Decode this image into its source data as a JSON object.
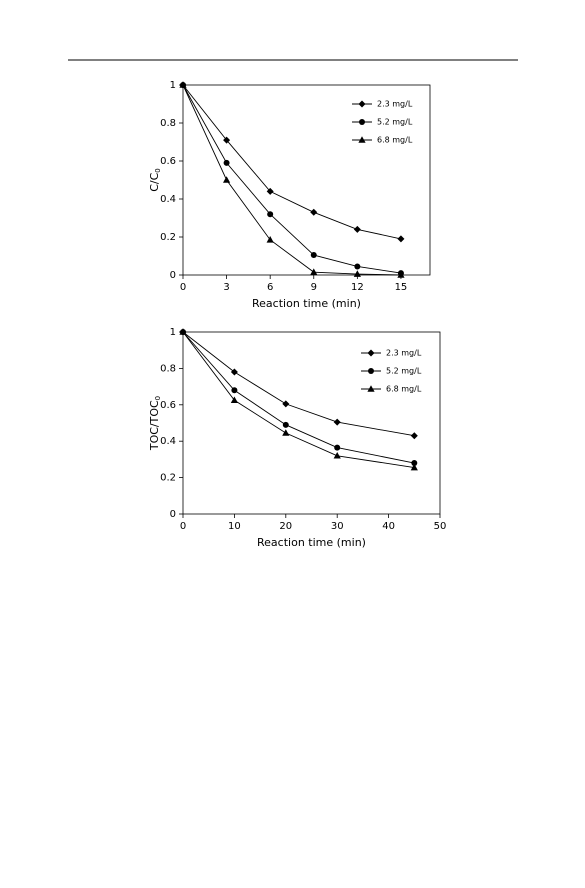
{
  "chart_data": [
    {
      "type": "line",
      "xlabel": "Reaction time (min)",
      "ylabel": {
        "main": "C/C",
        "sub": "0"
      },
      "xlim": [
        0,
        17
      ],
      "xticks": [
        0,
        3,
        6,
        9,
        12,
        15
      ],
      "ylim": [
        0,
        1
      ],
      "yticks": [
        0,
        {
          "value": 0.2,
          "label": "0.2"
        },
        {
          "value": 0.4,
          "label": "0.4"
        },
        {
          "value": 0.6,
          "label": "0.6"
        },
        {
          "value": 0.8,
          "label": "0.8"
        },
        1
      ],
      "x": [
        0,
        3,
        6,
        9,
        12,
        15
      ],
      "series": [
        {
          "name": "2.3 mg/L",
          "color": "#000000",
          "marker": "diamond",
          "values": [
            1,
            0.71,
            0.44,
            0.33,
            0.24,
            0.19
          ]
        },
        {
          "name": "5.2 mg/L",
          "color": "#000000",
          "marker": "circle",
          "values": [
            1,
            0.59,
            0.32,
            0.105,
            0.045,
            0.01
          ]
        },
        {
          "name": "6.8 mg/L",
          "color": "#000000",
          "marker": "triangle",
          "values": [
            1,
            0.5,
            0.185,
            0.015,
            0.005,
            0
          ]
        }
      ]
    },
    {
      "type": "line",
      "xlabel": "Reaction time (min)",
      "ylabel": {
        "main": "TOC/TOC",
        "sub": "0"
      },
      "xlim": [
        0,
        50
      ],
      "xticks": [
        0,
        10,
        20,
        30,
        40,
        50
      ],
      "ylim": [
        0,
        1
      ],
      "yticks": [
        0,
        {
          "value": 0.2,
          "label": "0.2"
        },
        {
          "value": 0.4,
          "label": "0.4"
        },
        {
          "value": 0.6,
          "label": "0.6"
        },
        {
          "value": 0.8,
          "label": "0.8"
        },
        1
      ],
      "x": [
        0,
        10,
        20,
        30,
        45
      ],
      "series": [
        {
          "name": "2.3 mg/L",
          "color": "#000000",
          "marker": "diamond",
          "values": [
            1,
            0.78,
            0.605,
            0.505,
            0.43
          ]
        },
        {
          "name": "5.2 mg/L",
          "color": "#000000",
          "marker": "circle",
          "values": [
            1,
            0.68,
            0.49,
            0.365,
            0.28
          ]
        },
        {
          "name": "6.8 mg/L",
          "color": "#000000",
          "marker": "triangle",
          "values": [
            1,
            0.625,
            0.445,
            0.32,
            0.255
          ]
        }
      ]
    }
  ]
}
